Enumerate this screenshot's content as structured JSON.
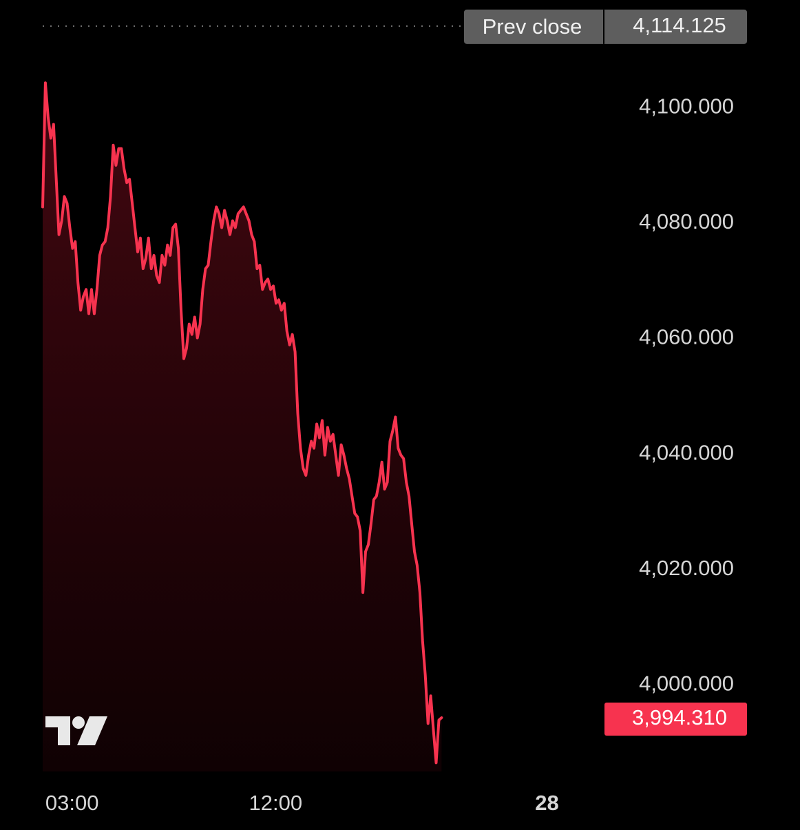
{
  "chart_data": {
    "type": "area",
    "x": [
      1.7,
      1.82,
      1.94,
      2.06,
      2.18,
      2.3,
      2.42,
      2.54,
      2.66,
      2.78,
      2.9,
      3.02,
      3.14,
      3.26,
      3.38,
      3.5,
      3.62,
      3.74,
      3.86,
      3.98,
      4.1,
      4.22,
      4.34,
      4.46,
      4.58,
      4.7,
      4.82,
      4.94,
      5.06,
      5.18,
      5.3,
      5.42,
      5.54,
      5.66,
      5.78,
      5.9,
      6.02,
      6.14,
      6.26,
      6.38,
      6.5,
      6.62,
      6.74,
      6.86,
      6.98,
      7.1,
      7.22,
      7.34,
      7.46,
      7.58,
      7.7,
      7.82,
      7.94,
      8.06,
      8.18,
      8.3,
      8.42,
      8.54,
      8.66,
      8.78,
      8.9,
      9.02,
      9.14,
      9.26,
      9.38,
      9.5,
      9.62,
      9.74,
      9.86,
      9.98,
      10.1,
      10.22,
      10.34,
      10.46,
      10.58,
      10.7,
      10.82,
      10.94,
      11.06,
      11.18,
      11.3,
      11.42,
      11.54,
      11.66,
      11.78,
      11.9,
      12.02,
      12.14,
      12.26,
      12.38,
      12.5,
      12.62,
      12.74,
      12.86,
      12.98,
      13.1,
      13.22,
      13.34,
      13.46,
      13.58,
      13.7,
      13.82,
      13.94,
      14.06,
      14.18,
      14.3,
      14.42,
      14.54,
      14.66,
      14.78,
      14.9,
      15.02,
      15.14,
      15.26,
      15.38,
      15.5,
      15.62,
      15.74,
      15.86,
      15.98,
      16.1,
      16.22,
      16.34,
      16.46,
      16.58,
      16.7,
      16.82,
      16.94,
      17.06,
      17.18,
      17.3,
      17.42,
      17.54,
      17.66,
      17.78,
      17.9,
      18.02,
      18.14,
      18.26,
      18.38,
      18.5,
      18.62,
      18.74,
      18.86,
      18.98,
      19.1,
      19.22,
      19.34
    ],
    "series": [
      {
        "color": "#f7334f",
        "values": [
          4082.8,
          4104.3,
          4098.3,
          4094.7,
          4097.1,
          4087.6,
          4078.0,
          4080.4,
          4084.6,
          4083.4,
          4079.2,
          4075.6,
          4076.8,
          4069.7,
          4064.9,
          4067.3,
          4068.5,
          4064.3,
          4068.5,
          4064.3,
          4068.5,
          4074.4,
          4076.2,
          4076.8,
          4079.2,
          4084.6,
          4093.5,
          4090.0,
          4092.9,
          4092.9,
          4089.4,
          4087.0,
          4087.6,
          4083.4,
          4079.2,
          4075.0,
          4077.4,
          4072.1,
          4073.9,
          4077.4,
          4072.1,
          4074.4,
          4070.9,
          4069.7,
          4074.4,
          4072.7,
          4076.2,
          4074.4,
          4079.2,
          4079.8,
          4075.6,
          4064.9,
          4056.5,
          4058.3,
          4062.5,
          4060.7,
          4063.7,
          4060.1,
          4062.5,
          4068.5,
          4072.1,
          4072.7,
          4076.8,
          4080.4,
          4082.8,
          4081.6,
          4079.2,
          4082.2,
          4080.4,
          4078.0,
          4080.4,
          4079.2,
          4081.6,
          4082.2,
          4082.8,
          4081.6,
          4080.4,
          4078.0,
          4076.8,
          4072.1,
          4072.7,
          4068.5,
          4069.7,
          4070.3,
          4068.5,
          4069.1,
          4066.1,
          4066.7,
          4064.9,
          4066.1,
          4061.3,
          4058.9,
          4060.7,
          4057.7,
          4047.0,
          4041.0,
          4037.5,
          4036.3,
          4039.8,
          4042.2,
          4041.0,
          4045.2,
          4042.8,
          4045.8,
          4039.8,
          4044.6,
          4042.2,
          4043.4,
          4039.8,
          4036.3,
          4041.6,
          4039.8,
          4037.5,
          4035.7,
          4032.7,
          4029.7,
          4029.1,
          4026.7,
          4016.0,
          4023.1,
          4024.3,
          4027.9,
          4032.1,
          4032.7,
          4035.1,
          4038.6,
          4033.9,
          4035.1,
          4042.2,
          4044.0,
          4046.4,
          4041.0,
          4039.8,
          4039.2,
          4035.1,
          4032.7,
          4027.9,
          4023.1,
          4020.7,
          4016.0,
          4007.6,
          4001.7,
          3993.3,
          3998.1,
          3992.1,
          3986.5,
          3993.9,
          3994.31
        ]
      }
    ],
    "xlim": [
      1.7,
      26.3
    ],
    "xticks": [
      {
        "value": 3,
        "label": "03:00"
      },
      {
        "value": 12,
        "label": "12:00"
      },
      {
        "value": 24,
        "label": "28"
      }
    ],
    "ylim": [
      3985,
      4119
    ],
    "yticks": [
      {
        "value": 4000,
        "label": "4,000.000"
      },
      {
        "value": 4020,
        "label": "4,020.000"
      },
      {
        "value": 4040,
        "label": "4,040.000"
      },
      {
        "value": 4060,
        "label": "4,060.000"
      },
      {
        "value": 4080,
        "label": "4,080.000"
      },
      {
        "value": 4100,
        "label": "4,100.000"
      }
    ],
    "prev_close": {
      "label": "Prev close",
      "value": 4114.125,
      "value_label": "4,114.125"
    },
    "last_price": {
      "value": 3994.31,
      "label": "3,994.310"
    }
  }
}
